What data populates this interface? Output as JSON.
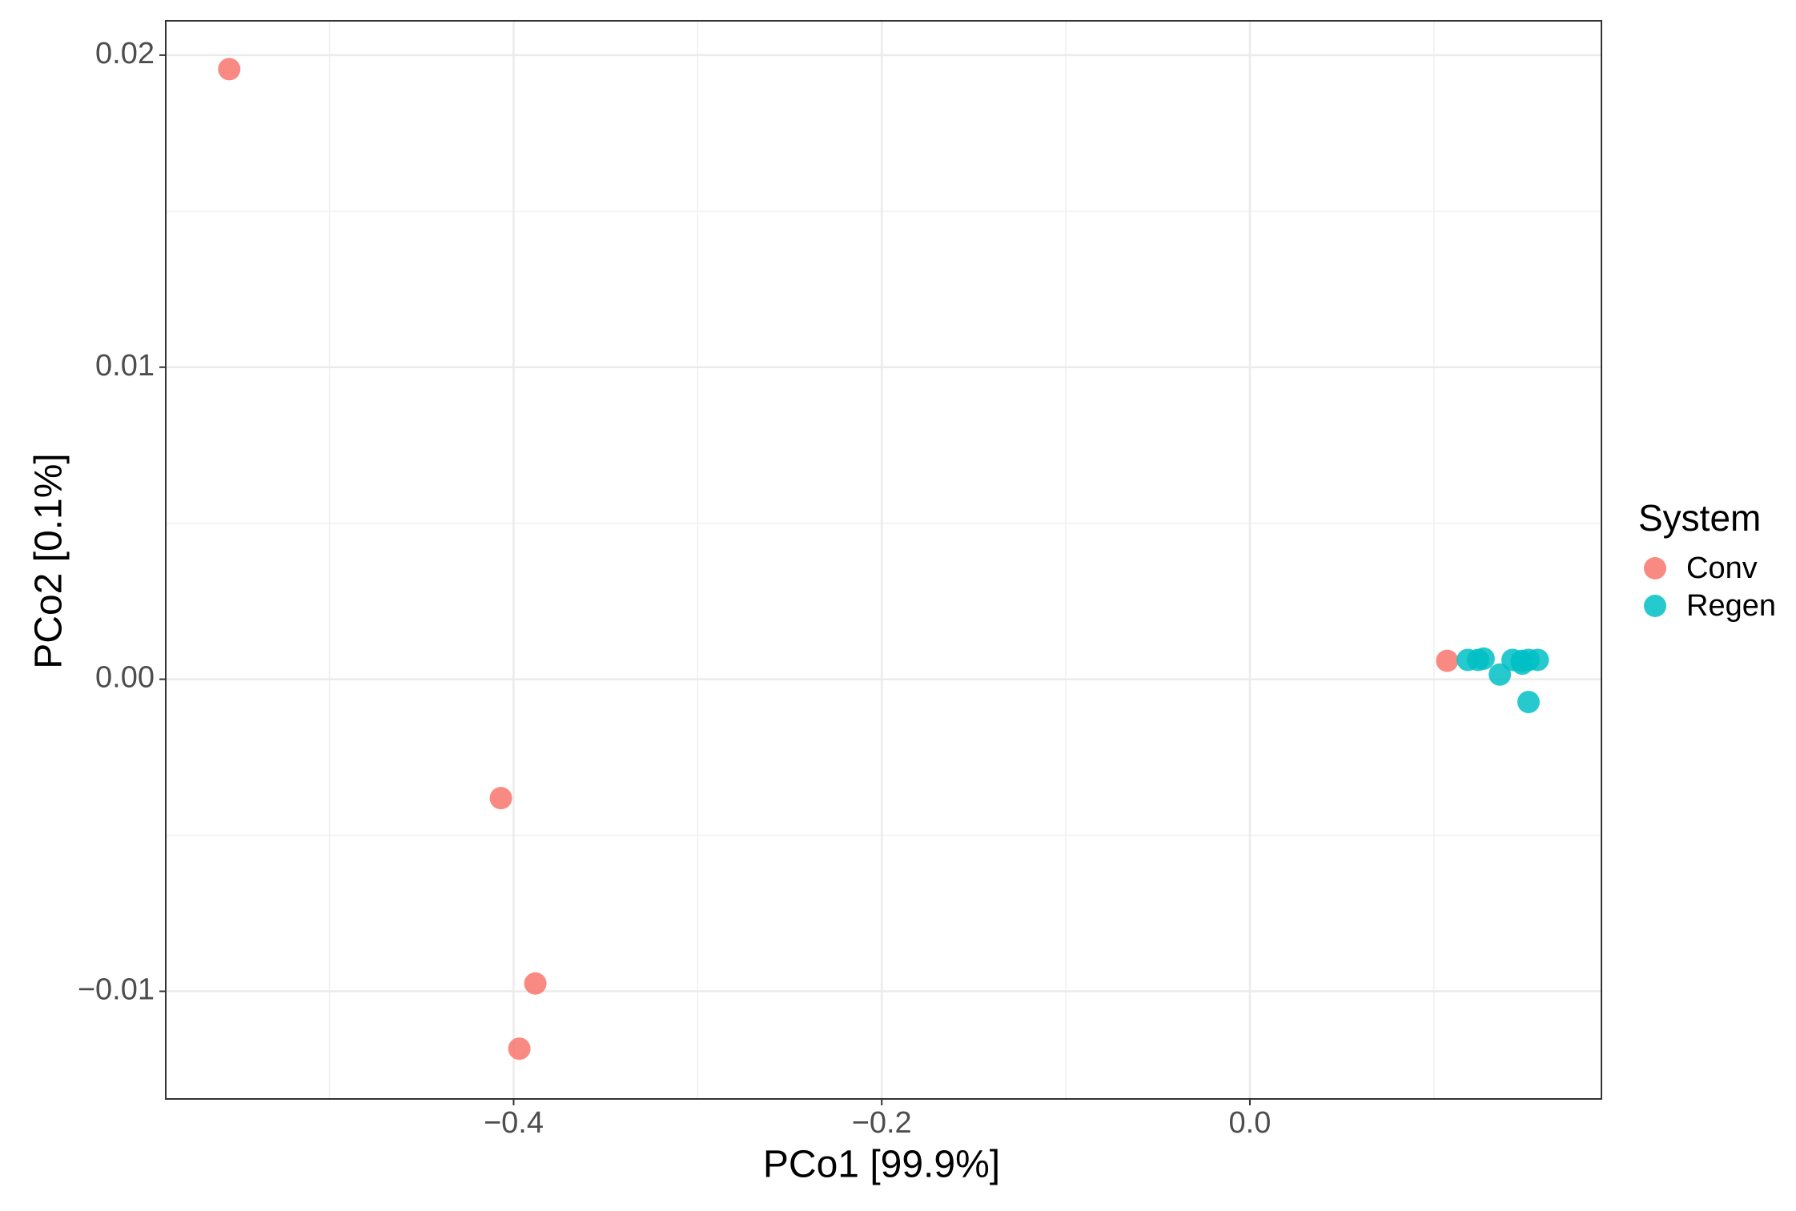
{
  "chart_data": {
    "type": "scatter",
    "x_label": "PCo1 [99.9%]",
    "y_label": "PCo2 [0.1%]",
    "legend_title": "System",
    "legend_position": "right",
    "grid": true,
    "xlim": [
      -0.589,
      0.191
    ],
    "ylim": [
      -0.01345,
      0.0211
    ],
    "xticks": [
      {
        "value": -0.4,
        "label": "−0.4"
      },
      {
        "value": -0.2,
        "label": "−0.2"
      },
      {
        "value": 0.0,
        "label": "0.0"
      }
    ],
    "yticks": [
      {
        "value": -0.01,
        "label": "−0.01"
      },
      {
        "value": 0.0,
        "label": "0.00"
      },
      0.01,
      0.02
    ],
    "x_minor_ticks": [
      -0.5,
      -0.3,
      -0.1,
      0.1
    ],
    "y_minor_ticks": [
      -0.005,
      0.005,
      0.015
    ],
    "series": [
      {
        "name": "Conv",
        "color": "#F8766D",
        "x": [
          -0.5545,
          -0.4069,
          -0.3882,
          -0.3969,
          0.1072
        ],
        "values": [
          0.01955,
          -0.00381,
          -0.00975,
          -0.01184,
          0.00059
        ]
      },
      {
        "name": "Regen",
        "color": "#00BFC4",
        "x": [
          0.1184,
          0.124,
          0.127,
          0.1358,
          0.1427,
          0.1477,
          0.1514,
          0.1564,
          0.1514,
          0.148
        ],
        "values": [
          0.00062,
          0.00062,
          0.00066,
          0.00015,
          0.00062,
          0.00059,
          0.00062,
          0.00062,
          -0.00073,
          0.0005
        ]
      }
    ]
  }
}
